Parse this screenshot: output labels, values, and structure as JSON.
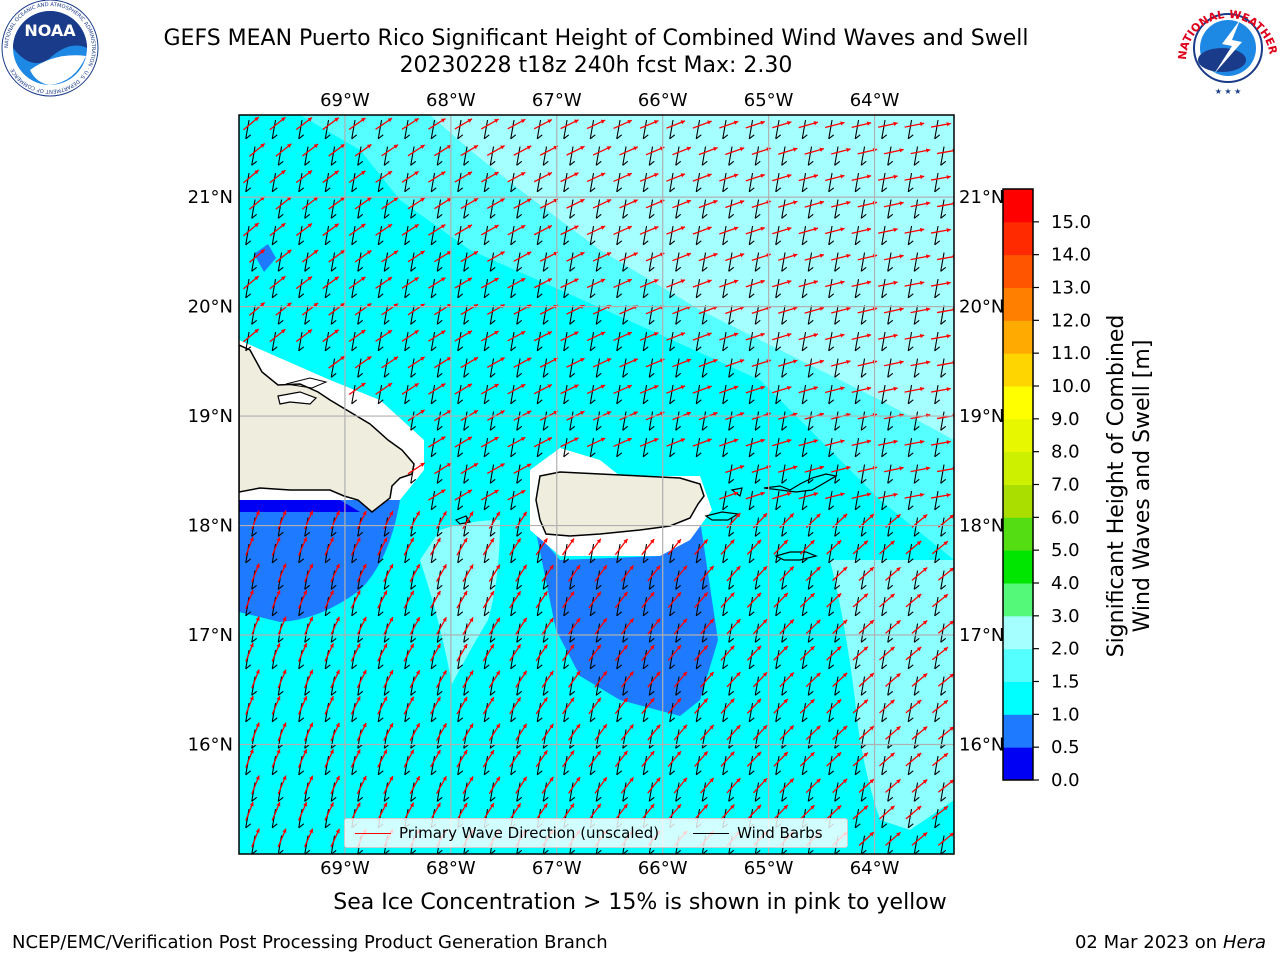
{
  "header": {
    "title_line1": "GEFS MEAN Puerto Rico Significant Height of Combined Wind Waves and Swell",
    "title_line2": "20230228 t18z 240h fcst   Max: 2.30"
  },
  "logos": {
    "noaa_text": "NOAA",
    "noaa_ring": "NATIONAL OCEANIC AND ATMOSPHERIC ADMINISTRATION · U.S. DEPARTMENT OF COMMERCE",
    "nws_ring": "NATIONAL WEATHER SERVICE"
  },
  "map": {
    "lon_labels": [
      "69°W",
      "68°W",
      "67°W",
      "66°W",
      "65°W",
      "64°W"
    ],
    "lat_labels": [
      "21°N",
      "20°N",
      "19°N",
      "18°N",
      "17°N",
      "16°N"
    ],
    "lon_values": [
      -69,
      -68,
      -67,
      -66,
      -65,
      -64
    ],
    "lat_values": [
      21,
      20,
      19,
      18,
      17,
      16
    ],
    "extent": {
      "lon_min": -70.0,
      "lon_max": -63.25,
      "lat_min": 15.0,
      "lat_max": 21.75
    },
    "colors": {
      "ocean_light": "#a6ffff",
      "ocean_mid": "#55ffff",
      "ocean_main": "#00ffff",
      "low_blue": "#1e7bff",
      "lowest_blue": "#0000f5",
      "land": "#efedde",
      "grid": "#b0b0b0",
      "wave_arrow": "#ff0000",
      "wind_barb": "#000000"
    },
    "wave_direction_deg": 335,
    "wind_direction_deg": 100
  },
  "legend": {
    "wave_label": "Primary Wave Direction (unscaled)",
    "barb_label": "Wind Barbs"
  },
  "colorbar": {
    "label_line1": "Significant Height of Combined",
    "label_line2": "Wind Waves and Swell [m]",
    "ticks": [
      "0.0",
      "0.5",
      "1.0",
      "1.5",
      "2.0",
      "3.0",
      "4.0",
      "5.0",
      "6.0",
      "7.0",
      "8.0",
      "9.0",
      "10.0",
      "11.0",
      "12.0",
      "13.0",
      "14.0",
      "15.0"
    ],
    "colors": [
      "#0000f5",
      "#1e7bff",
      "#00ffff",
      "#55ffff",
      "#a6ffff",
      "#55f97a",
      "#00e600",
      "#55dd14",
      "#aade00",
      "#ccf000",
      "#e6f700",
      "#ffff00",
      "#ffd500",
      "#ffaa00",
      "#ff8000",
      "#ff5500",
      "#ff2a00",
      "#ff0000"
    ]
  },
  "footer": {
    "note": "Sea Ice Concentration > 15% is shown in pink to yellow",
    "credit": "NCEP/EMC/Verification Post Processing Product Generation Branch",
    "date": "02 Mar 2023 on",
    "host": "Hera"
  }
}
